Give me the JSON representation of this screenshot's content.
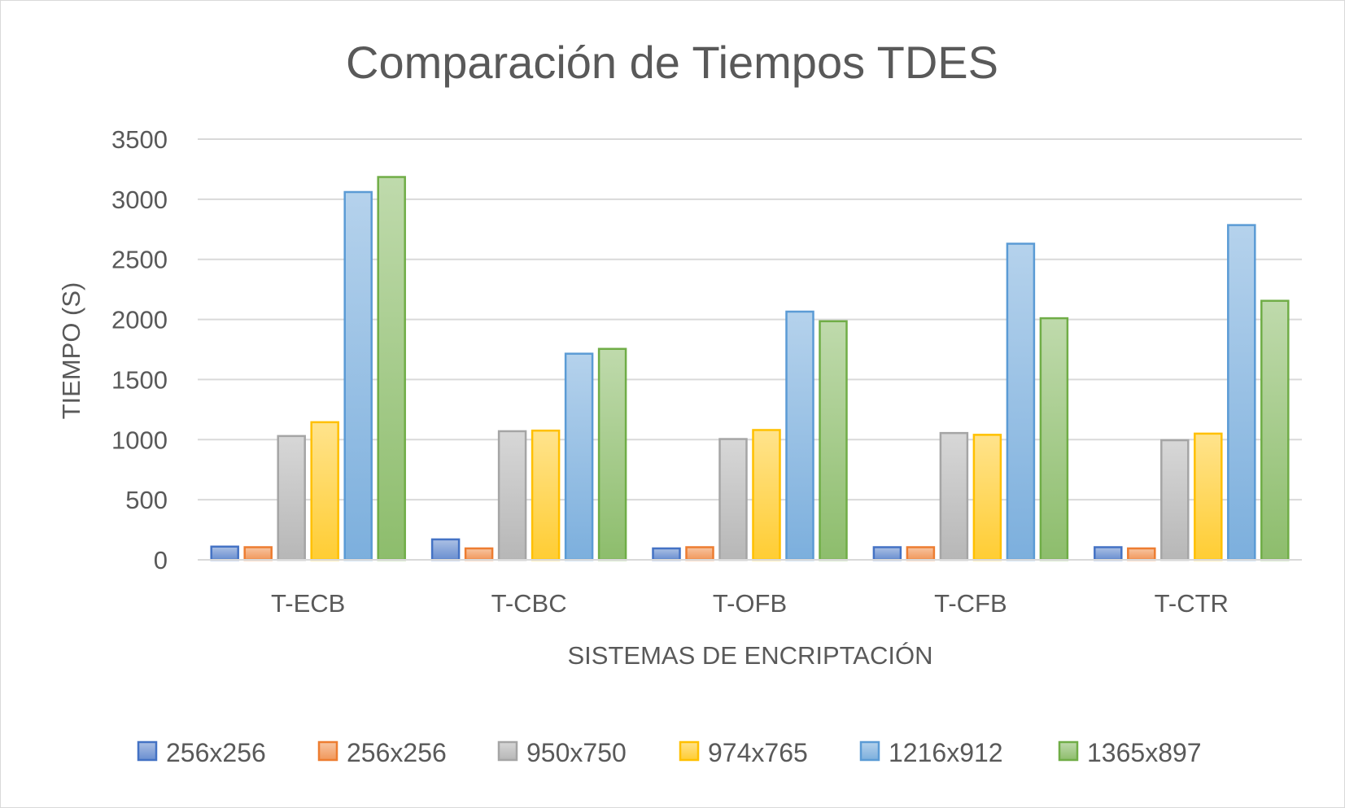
{
  "chart_data": {
    "type": "bar",
    "title": "Comparación de Tiempos TDES",
    "xlabel": "SISTEMAS DE ENCRIPTACIÓN",
    "ylabel": "TIEMPO (S)",
    "ylim": [
      0,
      3500
    ],
    "yticks": [
      0,
      500,
      1000,
      1500,
      2000,
      2500,
      3000,
      3500
    ],
    "grid": true,
    "legend_position": "bottom",
    "categories": [
      "T-ECB",
      "T-CBC",
      "T-OFB",
      "T-CFB",
      "T-CTR"
    ],
    "series": [
      {
        "name": "256x256",
        "color": "#4472c4",
        "values": [
          110,
          170,
          95,
          105,
          105
        ]
      },
      {
        "name": "256x256",
        "color": "#ed7d31",
        "values": [
          105,
          95,
          105,
          105,
          95
        ]
      },
      {
        "name": "950x750",
        "color": "#a5a5a5",
        "values": [
          1030,
          1070,
          1005,
          1055,
          995
        ]
      },
      {
        "name": "974x765",
        "color": "#ffc000",
        "values": [
          1145,
          1075,
          1080,
          1040,
          1050
        ]
      },
      {
        "name": "1216x912",
        "color": "#5b9bd5",
        "values": [
          3060,
          1715,
          2065,
          2630,
          2785
        ]
      },
      {
        "name": "1365x897",
        "color": "#70ad47",
        "values": [
          3185,
          1755,
          1985,
          2010,
          2155
        ]
      }
    ]
  }
}
